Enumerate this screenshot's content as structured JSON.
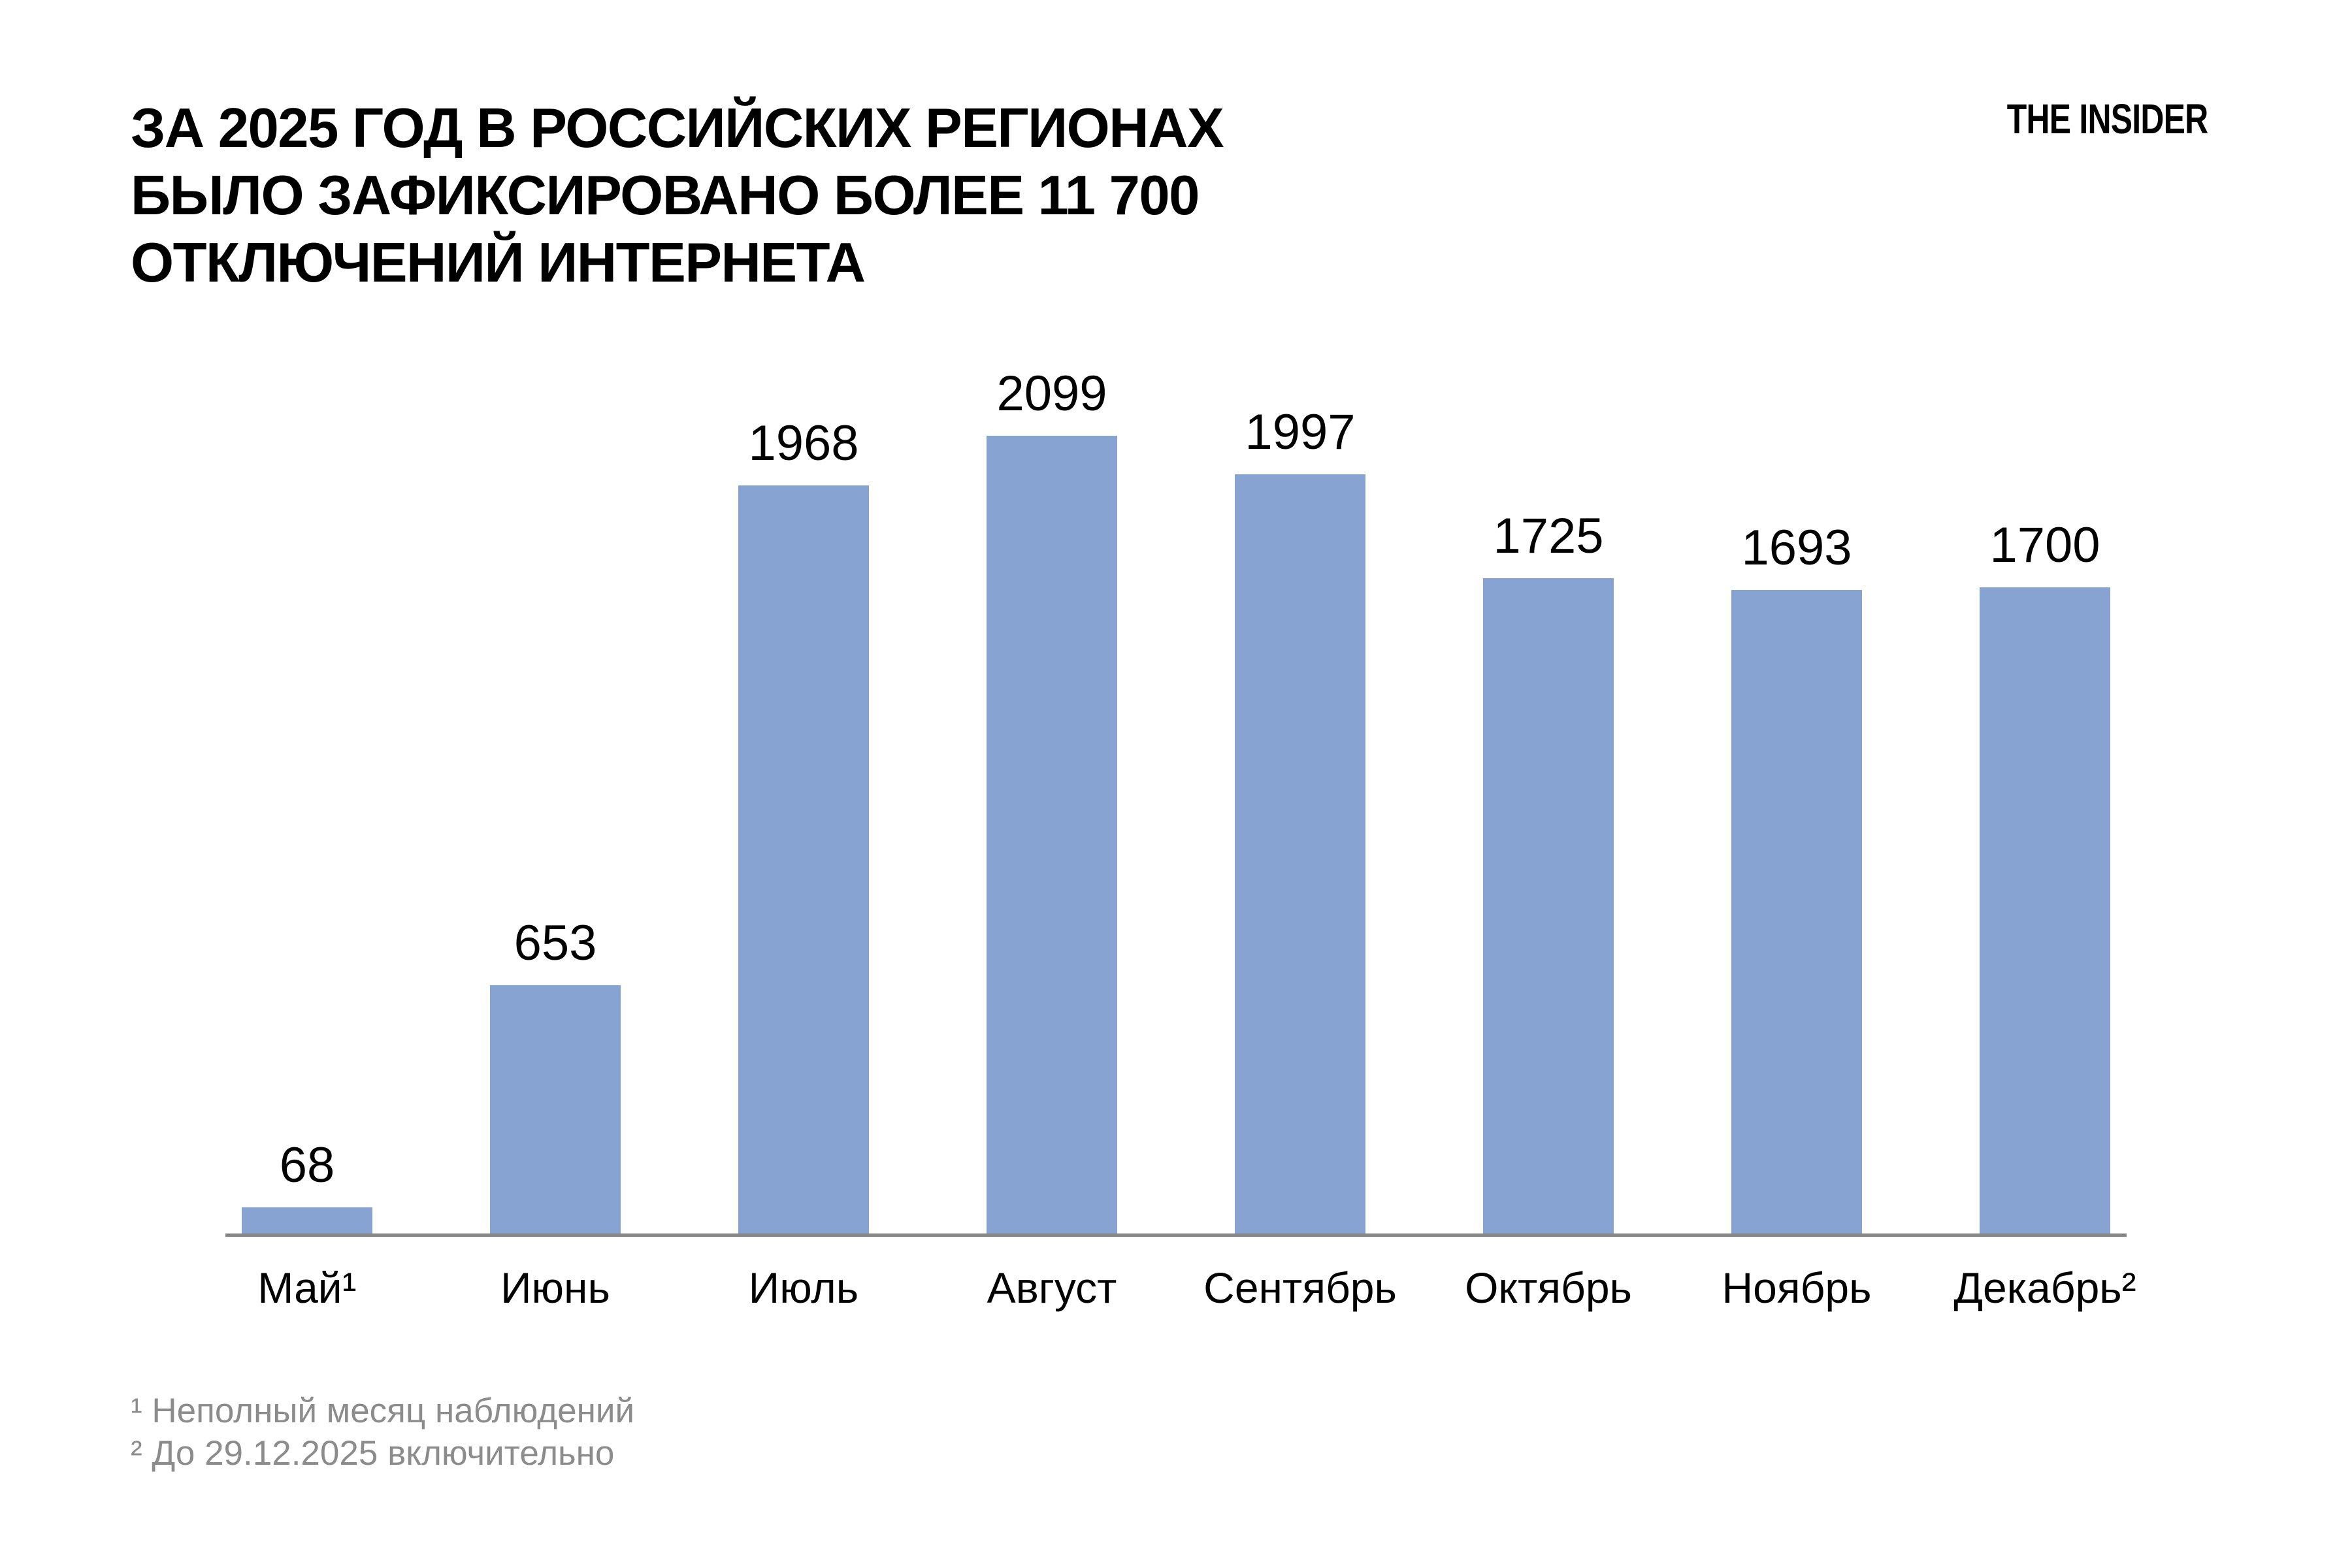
{
  "page": {
    "background": "#FFFFFF"
  },
  "header": {
    "title_lines": [
      "ЗА 2025 ГОД В РОССИЙСКИХ РЕГИОНАХ",
      "БЫЛО ЗАФИКСИРОВАНО БОЛЕЕ 11 700",
      "ОТКЛЮЧЕНИЙ ИНТЕРНЕТА"
    ],
    "logo": "THE INSIDER"
  },
  "chart_data": {
    "type": "bar",
    "title": "ЗА 2025 ГОД В РОССИЙСКИХ РЕГИОНАХ БЫЛО ЗАФИКСИРОВАНО БОЛЕЕ 11 700 ОТКЛЮЧЕНИЙ ИНТЕРНЕТА",
    "categories": [
      "Май¹",
      "Июнь",
      "Июль",
      "Август",
      "Сентябрь",
      "Октябрь",
      "Ноябрь",
      "Декабрь²"
    ],
    "values": [
      68,
      653,
      1968,
      2099,
      1997,
      1725,
      1693,
      1700
    ],
    "data_labels": true,
    "xlabel": "",
    "ylabel": "",
    "ylim": [
      0,
      2099
    ],
    "grid": false,
    "legend": false,
    "bar_color": "#87A3D1",
    "axis_color": "#858585",
    "label_color": "#000000"
  },
  "footnotes": {
    "color": "#8C8C8C",
    "items": [
      {
        "marker": "¹",
        "text": "Неполный месяц наблюдений"
      },
      {
        "marker": "²",
        "text": "До 29.12.2025 включительно"
      }
    ]
  }
}
